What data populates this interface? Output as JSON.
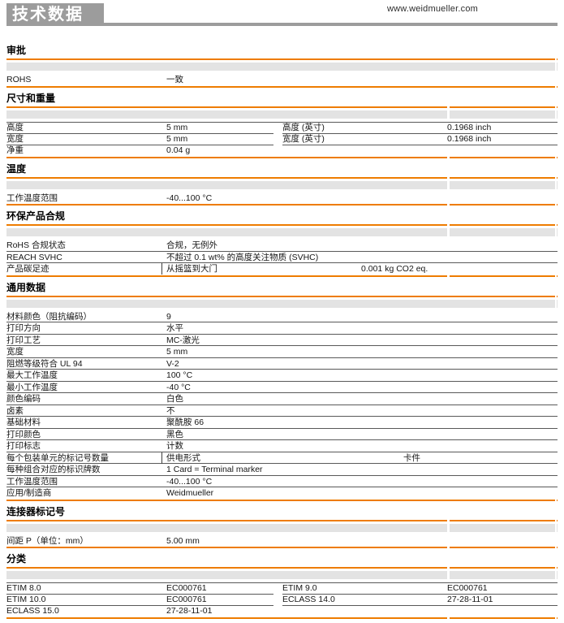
{
  "page": {
    "banner_title": "技术数据",
    "website": "www.weidmueller.com"
  },
  "colors": {
    "accent_orange": "#ee7c00",
    "banner_gray": "#9c9c9c",
    "band_gray": "#e3e3e3"
  },
  "sections": [
    {
      "id": "approvals",
      "title": "审批",
      "layout": "single",
      "gapped": false,
      "rows": [
        {
          "label": "ROHS",
          "value": "一致"
        }
      ]
    },
    {
      "id": "dimensions-weight",
      "title": "尺寸和重量",
      "layout": "twocol",
      "gapped": true,
      "left_rows": [
        {
          "label": "高度",
          "value": "5 mm"
        },
        {
          "label": "宽度",
          "value": "5 mm"
        },
        {
          "label": "净重",
          "value": "0.04 g"
        }
      ],
      "right_rows": [
        {
          "label": "高度 (英寸)",
          "value": "0.1968 inch"
        },
        {
          "label": "宽度 (英寸)",
          "value": "0.1968 inch"
        }
      ]
    },
    {
      "id": "temperature",
      "title": "温度",
      "layout": "single",
      "gapped": true,
      "rows": [
        {
          "label": "工作温度范围",
          "value": "-40...100 °C"
        }
      ]
    },
    {
      "id": "environmental-compliance",
      "title": "环保产品合规",
      "layout": "single",
      "gapped": true,
      "rows": [
        {
          "label": "RoHS 合规状态",
          "value": "合规，无例外"
        },
        {
          "label": "REACH SVHC",
          "value": "不超过 0.1 wt% 的高度关注物质 (SVHC)"
        },
        {
          "label": "产品碳足迹",
          "value": "从摇篮到大门",
          "value_piped": true,
          "value2": "0.001 kg CO2 eq."
        }
      ]
    },
    {
      "id": "general-data",
      "title": "通用数据",
      "layout": "single",
      "gapped": false,
      "rows": [
        {
          "label": "材料颜色（阻抗编码）",
          "value": "9"
        },
        {
          "label": "打印方向",
          "value": "水平"
        },
        {
          "label": "打印工艺",
          "value": "MC-激光"
        },
        {
          "label": "宽度",
          "value": "5 mm"
        },
        {
          "label": "阻燃等级符合 UL 94",
          "value": "V-2"
        },
        {
          "label": "最大工作温度",
          "value": "100 °C"
        },
        {
          "label": "最小工作温度",
          "value": "-40 °C"
        },
        {
          "label": "颜色编码",
          "value": "白色"
        },
        {
          "label": "卤素",
          "value": "不"
        },
        {
          "label": "基础材料",
          "value": "聚酰胺 66"
        },
        {
          "label": "打印颜色",
          "value": "黑色"
        },
        {
          "label": "打印标志",
          "value": "计数"
        },
        {
          "label": "每个包装单元的标记号数量",
          "value": "供电形式",
          "value_piped": true,
          "value2": "卡件"
        },
        {
          "label": "每种组合对应的标识牌数",
          "value": "1 Card = Terminal marker"
        },
        {
          "label": "工作温度范围",
          "value": "-40...100 °C"
        },
        {
          "label": "应用/制造商",
          "value": "Weidmueller"
        }
      ]
    },
    {
      "id": "connector-markers",
      "title": "连接器标记号",
      "layout": "single",
      "gapped": true,
      "rows": [
        {
          "label": "间距 P（单位：mm）",
          "value": "5.00 mm"
        }
      ]
    },
    {
      "id": "classification",
      "title": "分类",
      "layout": "twocol",
      "gapped": true,
      "left_rows": [
        {
          "label": "ETIM 8.0",
          "value": "EC000761"
        },
        {
          "label": "ETIM 10.0",
          "value": "EC000761"
        },
        {
          "label": "ECLASS 15.0",
          "value": "27-28-11-01"
        }
      ],
      "right_rows": [
        {
          "label": "ETIM 9.0",
          "value": "EC000761"
        },
        {
          "label": "ECLASS 14.0",
          "value": "27-28-11-01"
        }
      ]
    }
  ]
}
